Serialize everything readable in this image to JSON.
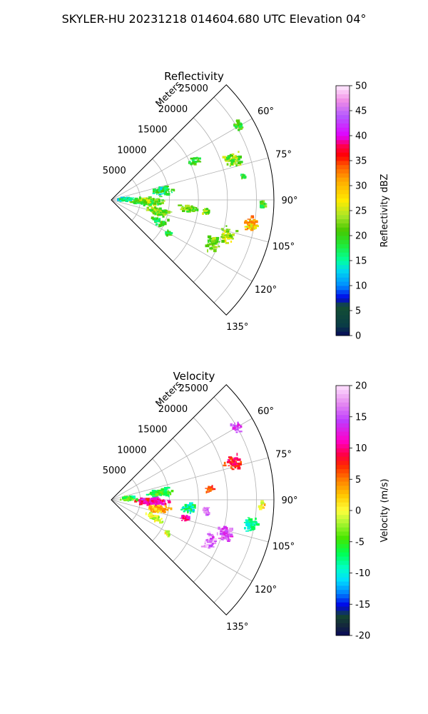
{
  "suptitle": "SKYLER-HU  20231218  014604.680 UTC Elevation 04°",
  "chart_data": [
    {
      "type": "heatmap",
      "title": "Reflectivity",
      "radial_label": "Meters",
      "radial_ticks": [
        "5000",
        "10000",
        "15000",
        "20000",
        "25000"
      ],
      "angle_ticks": [
        "60°",
        "75°",
        "90°",
        "105°",
        "120°",
        "135°"
      ],
      "colorbar": {
        "label": "Reflectivity dBZ",
        "range": [
          0,
          50
        ],
        "ticks": [
          "0",
          "5",
          "10",
          "15",
          "20",
          "25",
          "30",
          "35",
          "40",
          "45",
          "50"
        ]
      }
    },
    {
      "type": "heatmap",
      "title": "Velocity",
      "radial_label": "Meters",
      "radial_ticks": [
        "5000",
        "10000",
        "15000",
        "20000",
        "25000"
      ],
      "angle_ticks": [
        "60°",
        "75°",
        "90°",
        "105°",
        "120°",
        "135°"
      ],
      "colorbar": {
        "label": "Velocity (m/s)",
        "range": [
          -20,
          20
        ],
        "ticks": [
          "-20",
          "-15",
          "-10",
          "-5",
          "0",
          "5",
          "10",
          "15",
          "20"
        ]
      }
    }
  ]
}
